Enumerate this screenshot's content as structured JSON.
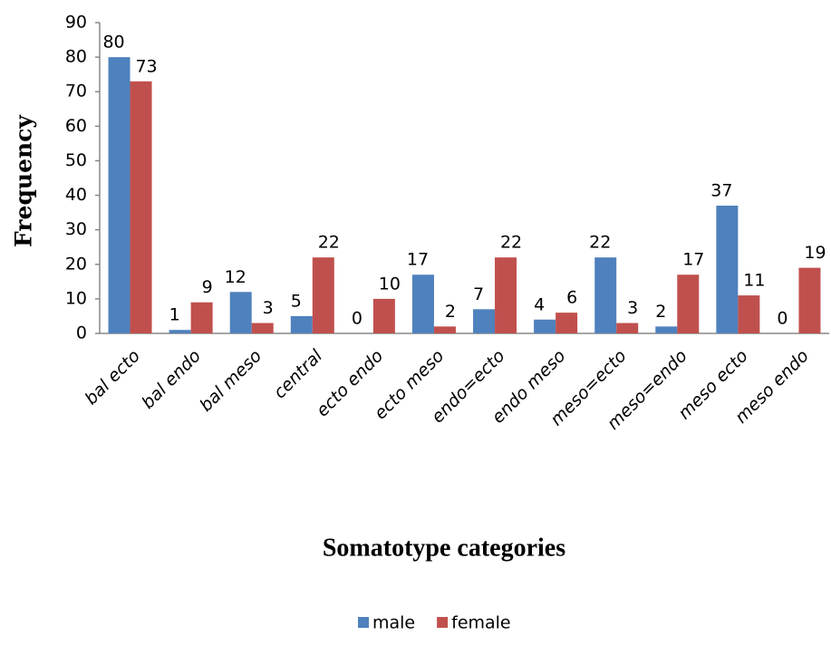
{
  "chart_data": {
    "type": "bar",
    "x_label": "Somatotype categories",
    "y_label": "Frequency",
    "categories": [
      "bal ecto",
      "bal endo",
      "bal meso",
      "central",
      "ecto endo",
      "ecto meso",
      "endo=ecto",
      "endo meso",
      "meso=ecto",
      "meso=endo",
      "meso ecto",
      "meso endo"
    ],
    "series": [
      {
        "name": "male",
        "color": "#4f81bd",
        "values": [
          80,
          1,
          12,
          5,
          0,
          17,
          7,
          4,
          22,
          2,
          37,
          0
        ]
      },
      {
        "name": "female",
        "color": "#c0504d",
        "values": [
          73,
          9,
          3,
          22,
          10,
          2,
          22,
          6,
          3,
          17,
          11,
          19
        ]
      }
    ],
    "ylim": [
      0,
      90
    ],
    "yticks": [
      0,
      10,
      20,
      30,
      40,
      50,
      60,
      70,
      80,
      90
    ],
    "grid": false,
    "legend": "bottom"
  }
}
